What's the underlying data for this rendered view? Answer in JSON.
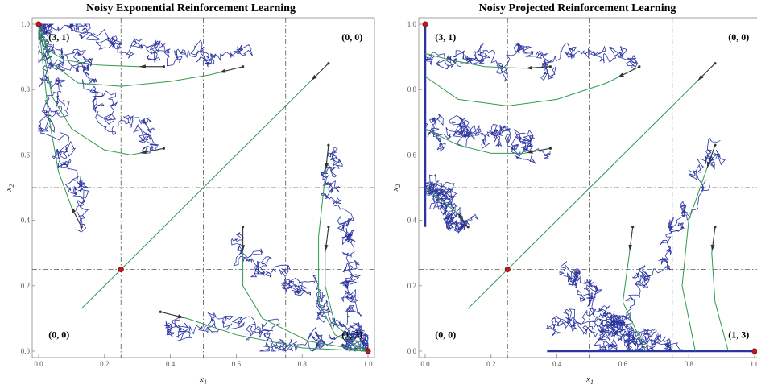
{
  "chart_data": [
    {
      "type": "line",
      "title": "Noisy Exponential Reinforcement Learning",
      "xlabel_main": "x",
      "xlabel_sub": "1",
      "ylabel_main": "x",
      "ylabel_sub": "2",
      "xlim": [
        0,
        1
      ],
      "ylim": [
        0,
        1
      ],
      "xticks": [
        "0.0",
        "0.2",
        "0.4",
        "0.6",
        "0.8",
        "1.0"
      ],
      "yticks": [
        "0.0",
        "0.2",
        "0.4",
        "0.6",
        "0.8",
        "1.0"
      ],
      "grid_x": [
        0.25,
        0.5,
        0.75
      ],
      "grid_y": [
        0.25,
        0.5,
        0.75
      ],
      "corner_labels": [
        {
          "text": "(3, 1)",
          "x": 0.03,
          "y": 0.96
        },
        {
          "text": "(0, 0)",
          "x": 0.92,
          "y": 0.96
        },
        {
          "text": "(0, 0)",
          "x": 0.03,
          "y": 0.05
        },
        {
          "text": "(1, 3)",
          "x": 0.92,
          "y": 0.05
        }
      ],
      "equilibria": [
        {
          "x": 0,
          "y": 1
        },
        {
          "x": 0.25,
          "y": 0.25
        },
        {
          "x": 1,
          "y": 0
        }
      ],
      "deterministic_paths": [
        [
          [
            0,
            1
          ],
          [
            0.03,
            0.92
          ],
          [
            0.08,
            0.89
          ],
          [
            0.18,
            0.875
          ],
          [
            0.3,
            0.87
          ],
          [
            0.38,
            0.87
          ]
        ],
        [
          [
            0,
            1
          ],
          [
            0.04,
            0.88
          ],
          [
            0.12,
            0.82
          ],
          [
            0.25,
            0.81
          ],
          [
            0.4,
            0.825
          ],
          [
            0.52,
            0.845
          ],
          [
            0.62,
            0.87
          ]
        ],
        [
          [
            0,
            1
          ],
          [
            0.04,
            0.78
          ],
          [
            0.1,
            0.68
          ],
          [
            0.2,
            0.615
          ],
          [
            0.28,
            0.6
          ],
          [
            0.38,
            0.62
          ]
        ],
        [
          [
            0,
            1
          ],
          [
            0.03,
            0.72
          ],
          [
            0.06,
            0.55
          ],
          [
            0.1,
            0.44
          ],
          [
            0.13,
            0.38
          ]
        ],
        [
          [
            0.13,
            0.13
          ],
          [
            0.25,
            0.25
          ],
          [
            0.5,
            0.5
          ],
          [
            0.75,
            0.75
          ],
          [
            0.88,
            0.88
          ]
        ],
        [
          [
            1,
            0
          ],
          [
            0.9,
            0.08
          ],
          [
            0.87,
            0.2
          ],
          [
            0.87,
            0.3
          ],
          [
            0.88,
            0.38
          ]
        ],
        [
          [
            1,
            0
          ],
          [
            0.9,
            0.05
          ],
          [
            0.85,
            0.15
          ],
          [
            0.85,
            0.35
          ],
          [
            0.88,
            0.63
          ]
        ],
        [
          [
            1,
            0
          ],
          [
            0.82,
            0.03
          ],
          [
            0.68,
            0.1
          ],
          [
            0.62,
            0.2
          ],
          [
            0.62,
            0.38
          ]
        ],
        [
          [
            1,
            0
          ],
          [
            0.8,
            0.01
          ],
          [
            0.6,
            0.05
          ],
          [
            0.45,
            0.1
          ],
          [
            0.37,
            0.12
          ]
        ]
      ],
      "noisy_paths": [
        {
          "start": [
            0,
            1
          ],
          "end": [
            0.64,
            0.87
          ]
        },
        {
          "start": [
            0,
            1
          ],
          "end": [
            0.34,
            0.61
          ]
        },
        {
          "start": [
            0,
            1
          ],
          "end": [
            0.13,
            0.38
          ]
        },
        {
          "start": [
            1,
            0
          ],
          "end": [
            0.35,
            0.09
          ]
        },
        {
          "start": [
            1,
            0
          ],
          "end": [
            0.87,
            0.63
          ]
        },
        {
          "start": [
            1,
            0
          ],
          "end": [
            0.6,
            0.35
          ]
        }
      ]
    },
    {
      "type": "line",
      "title": "Noisy Projected Reinforcement Learning",
      "xlabel_main": "x",
      "xlabel_sub": "1",
      "ylabel_main": "x",
      "ylabel_sub": "2",
      "xlim": [
        0,
        1
      ],
      "ylim": [
        0,
        1
      ],
      "xticks": [
        "0.0",
        "0.2",
        "0.4",
        "0.6",
        "0.8",
        "1.0"
      ],
      "yticks": [
        "0.0",
        "0.2",
        "0.4",
        "0.6",
        "0.8",
        "1.0"
      ],
      "grid_x": [
        0.25,
        0.5,
        0.75
      ],
      "grid_y": [
        0.25,
        0.5,
        0.75
      ],
      "corner_labels": [
        {
          "text": "(3, 1)",
          "x": 0.03,
          "y": 0.96
        },
        {
          "text": "(0, 0)",
          "x": 0.92,
          "y": 0.96
        },
        {
          "text": "(0, 0)",
          "x": 0.03,
          "y": 0.05
        },
        {
          "text": "(1, 3)",
          "x": 0.92,
          "y": 0.05
        }
      ],
      "equilibria": [
        {
          "x": 0,
          "y": 1
        },
        {
          "x": 0.25,
          "y": 0.25
        },
        {
          "x": 1,
          "y": 0
        }
      ],
      "boundary_segments": [
        [
          [
            0,
            1
          ],
          [
            0,
            0.38
          ]
        ],
        [
          [
            0.37,
            0
          ],
          [
            1,
            0
          ]
        ]
      ],
      "deterministic_paths": [
        [
          [
            0,
            0.91
          ],
          [
            0.08,
            0.89
          ],
          [
            0.18,
            0.87
          ],
          [
            0.3,
            0.865
          ],
          [
            0.38,
            0.87
          ]
        ],
        [
          [
            0,
            0.84
          ],
          [
            0.1,
            0.77
          ],
          [
            0.25,
            0.75
          ],
          [
            0.4,
            0.77
          ],
          [
            0.55,
            0.82
          ],
          [
            0.65,
            0.87
          ]
        ],
        [
          [
            0,
            0.68
          ],
          [
            0.1,
            0.63
          ],
          [
            0.2,
            0.605
          ],
          [
            0.3,
            0.605
          ],
          [
            0.38,
            0.62
          ]
        ],
        [
          [
            0,
            0.5
          ],
          [
            0.05,
            0.46
          ],
          [
            0.1,
            0.42
          ],
          [
            0.13,
            0.38
          ]
        ],
        [
          [
            0.13,
            0.13
          ],
          [
            0.25,
            0.25
          ],
          [
            0.5,
            0.5
          ],
          [
            0.75,
            0.75
          ],
          [
            0.88,
            0.88
          ]
        ],
        [
          [
            0.92,
            0
          ],
          [
            0.88,
            0.15
          ],
          [
            0.87,
            0.3
          ],
          [
            0.88,
            0.38
          ]
        ],
        [
          [
            0.82,
            0
          ],
          [
            0.78,
            0.2
          ],
          [
            0.8,
            0.4
          ],
          [
            0.88,
            0.63
          ]
        ],
        [
          [
            0.67,
            0
          ],
          [
            0.6,
            0.15
          ],
          [
            0.62,
            0.3
          ],
          [
            0.63,
            0.38
          ]
        ]
      ],
      "noisy_paths": [
        {
          "start": [
            0,
            0.91
          ],
          "end": [
            0.66,
            0.87
          ]
        },
        {
          "start": [
            0,
            0.7
          ],
          "end": [
            0.38,
            0.61
          ]
        },
        {
          "start": [
            0,
            0.5
          ],
          "end": [
            0.13,
            0.38
          ]
        },
        {
          "start": [
            0.55,
            0
          ],
          "end": [
            0.88,
            0.64
          ]
        },
        {
          "start": [
            0.67,
            0
          ],
          "end": [
            0.44,
            0.25
          ]
        },
        {
          "start": [
            0.75,
            0
          ],
          "end": [
            0.38,
            0.1
          ]
        }
      ]
    }
  ]
}
